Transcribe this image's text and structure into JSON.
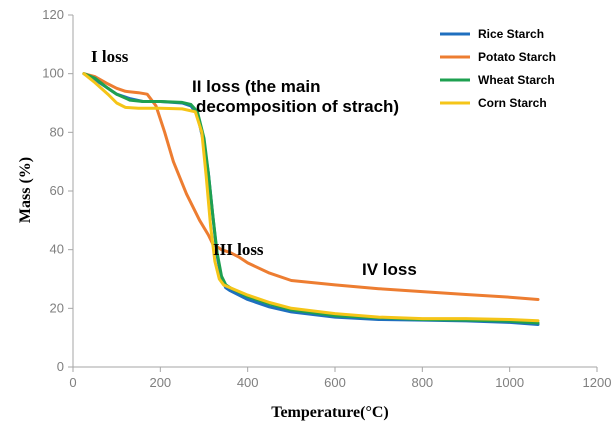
{
  "chart_data": {
    "type": "line",
    "title": "",
    "xlabel": "Temperature(°C)",
    "ylabel": "Mass (%)",
    "xlim": [
      0,
      1200
    ],
    "ylim": [
      0,
      120
    ],
    "xticks": [
      "0",
      "200",
      "400",
      "600",
      "800",
      "1000",
      "1200"
    ],
    "yticks": [
      "0",
      "20",
      "40",
      "60",
      "80",
      "100",
      "120"
    ],
    "legend_position": "top-right",
    "colors": {
      "axis": "#a6a6a6",
      "tick_text": "#7f7f7f"
    },
    "series": [
      {
        "name": "Rice Starch",
        "color": "#1f6fbf",
        "x": [
          25,
          50,
          80,
          100,
          130,
          160,
          200,
          250,
          270,
          285,
          300,
          310,
          320,
          330,
          340,
          350,
          360,
          400,
          450,
          500,
          600,
          700,
          800,
          900,
          1000,
          1065
        ],
        "y": [
          100,
          98,
          95,
          93,
          91.5,
          90.5,
          90.5,
          90,
          89,
          86,
          76,
          66,
          52,
          38,
          30,
          27,
          26,
          23,
          20.5,
          18.8,
          17,
          16.2,
          16,
          15.7,
          15.2,
          14.5
        ]
      },
      {
        "name": "Potato Starch",
        "color": "#ed7d31",
        "x": [
          25,
          50,
          80,
          100,
          120,
          150,
          170,
          190,
          210,
          230,
          260,
          290,
          310,
          320,
          340,
          360,
          380,
          400,
          450,
          500,
          600,
          700,
          800,
          900,
          1000,
          1065
        ],
        "y": [
          100,
          99,
          96.5,
          95,
          94,
          93.5,
          93,
          89,
          80,
          70,
          59,
          50,
          45,
          42,
          40,
          39,
          37.5,
          35.5,
          32,
          29.5,
          28,
          26.7,
          25.7,
          24.7,
          23.8,
          23
        ]
      },
      {
        "name": "Wheat Starch",
        "color": "#1ea050",
        "x": [
          25,
          50,
          80,
          100,
          130,
          160,
          200,
          250,
          270,
          285,
          300,
          310,
          320,
          330,
          340,
          350,
          360,
          400,
          450,
          500,
          600,
          700,
          800,
          900,
          1000,
          1065
        ],
        "y": [
          100,
          98.5,
          95,
          93,
          91,
          90.5,
          90.5,
          90.2,
          89.5,
          87,
          78,
          66,
          52,
          39,
          31,
          28,
          27,
          24,
          21.5,
          19.5,
          17.5,
          16.8,
          16.2,
          16,
          15.6,
          15
        ]
      },
      {
        "name": "Corn Starch",
        "color": "#f5c518",
        "x": [
          25,
          50,
          80,
          100,
          120,
          150,
          200,
          250,
          280,
          295,
          305,
          315,
          325,
          335,
          345,
          360,
          400,
          450,
          500,
          600,
          700,
          800,
          900,
          1000,
          1065
        ],
        "y": [
          100,
          97,
          93,
          90,
          88.5,
          88.2,
          88.2,
          88,
          87,
          80,
          65,
          48,
          36,
          30,
          28,
          27,
          24.5,
          22,
          20,
          18.2,
          17,
          16.5,
          16.5,
          16.2,
          15.8
        ]
      }
    ],
    "annotations": [
      {
        "id": "loss1",
        "text": "I loss"
      },
      {
        "id": "loss2a",
        "text": "II loss (the main"
      },
      {
        "id": "loss2b",
        "text": "decomposition of strach)"
      },
      {
        "id": "loss3",
        "text": "III loss"
      },
      {
        "id": "loss4",
        "text": "IV loss"
      }
    ]
  }
}
